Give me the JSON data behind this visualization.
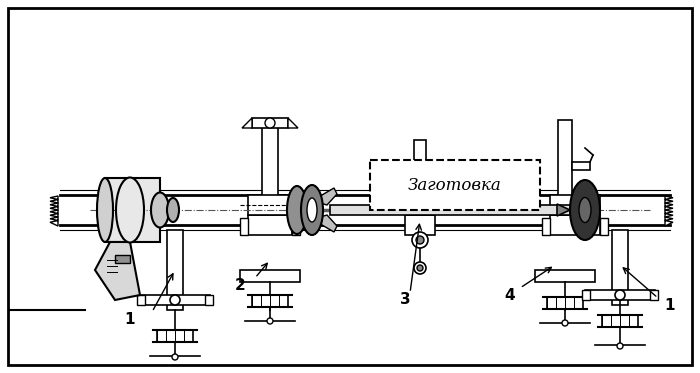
{
  "title": "",
  "bg_color": "#ffffff",
  "border_color": "#000000",
  "line_color": "#000000",
  "label_1_left": "1",
  "label_1_right": "1",
  "label_2": "2",
  "label_3": "3",
  "label_4": "4",
  "workpiece_label": "Заготовка",
  "figsize": [
    7.0,
    3.73
  ],
  "dpi": 100
}
